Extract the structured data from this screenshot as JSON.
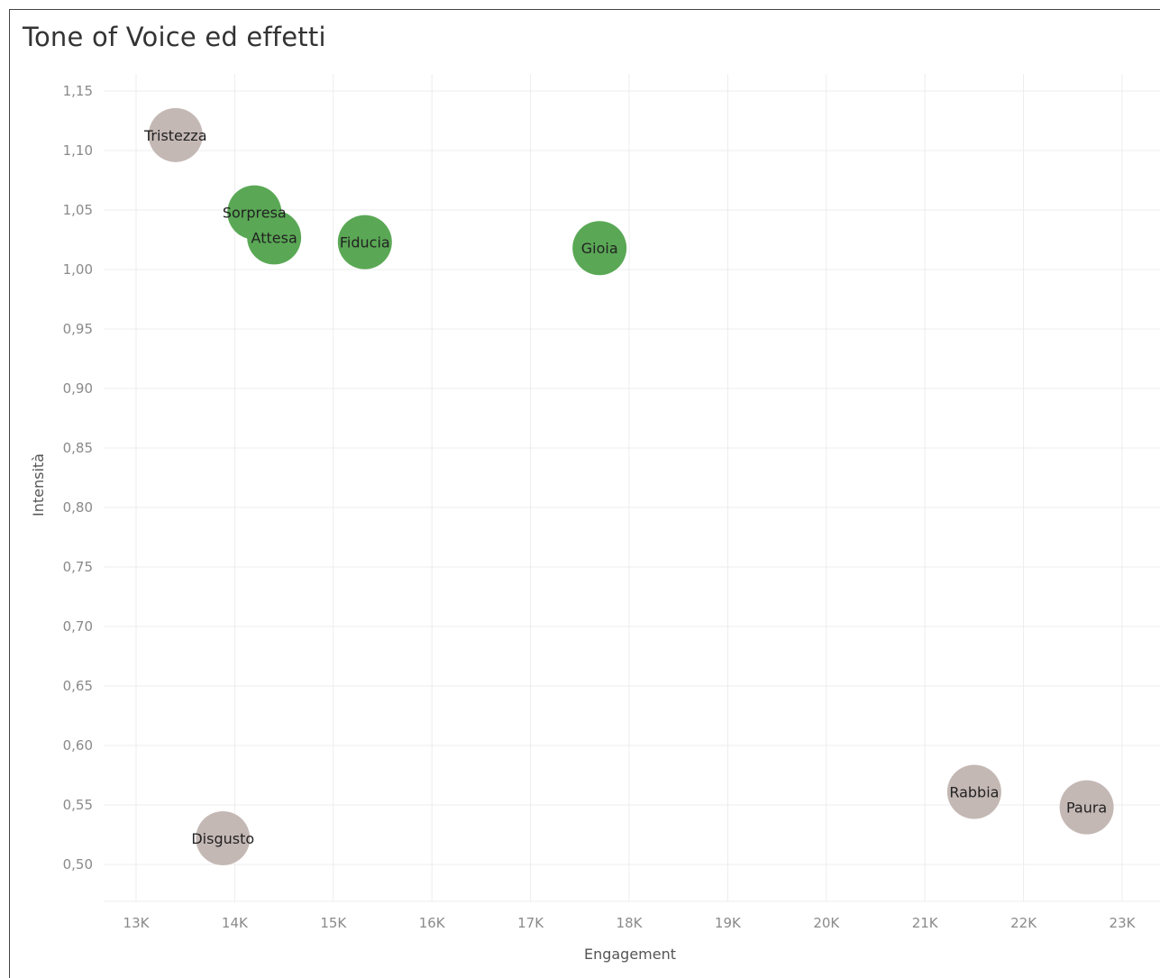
{
  "title": "Tone of Voice ed effetti",
  "colors": {
    "positive": "#5aa855",
    "negative": "#c4b8b5",
    "grid": "#ececec",
    "tick_text": "#8a8a8a"
  },
  "chart_data": {
    "type": "scatter",
    "title": "Tone of Voice ed effetti",
    "xlabel": "Engagement",
    "ylabel": "Intensità",
    "xlim": [
      12700,
      23400
    ],
    "ylim": [
      0.465,
      1.165
    ],
    "x_ticks": [
      13000,
      14000,
      15000,
      16000,
      17000,
      18000,
      19000,
      20000,
      21000,
      22000,
      23000
    ],
    "x_tick_labels": [
      "13K",
      "14K",
      "15K",
      "16K",
      "17K",
      "18K",
      "19K",
      "20K",
      "21K",
      "22K",
      "23K"
    ],
    "y_ticks": [
      0.5,
      0.55,
      0.6,
      0.65,
      0.7,
      0.75,
      0.8,
      0.85,
      0.9,
      0.95,
      1.0,
      1.05,
      1.1,
      1.15
    ],
    "y_tick_labels": [
      "0,50",
      "0,55",
      "0,60",
      "0,65",
      "0,70",
      "0,75",
      "0,80",
      "0,85",
      "0,90",
      "0,95",
      "1,00",
      "1,05",
      "1,10",
      "1,15"
    ],
    "grid": true,
    "points": [
      {
        "label": "Tristezza",
        "x": 13400,
        "y": 1.113,
        "group": "negative"
      },
      {
        "label": "Sorpresa",
        "x": 14200,
        "y": 1.048,
        "group": "positive"
      },
      {
        "label": "Attesa",
        "x": 14400,
        "y": 1.027,
        "group": "positive"
      },
      {
        "label": "Fiducia",
        "x": 15320,
        "y": 1.023,
        "group": "positive"
      },
      {
        "label": "Gioia",
        "x": 17700,
        "y": 1.018,
        "group": "positive"
      },
      {
        "label": "Rabbia",
        "x": 21500,
        "y": 0.561,
        "group": "negative"
      },
      {
        "label": "Paura",
        "x": 22640,
        "y": 0.548,
        "group": "negative"
      },
      {
        "label": "Disgusto",
        "x": 13880,
        "y": 0.522,
        "group": "negative"
      }
    ]
  }
}
